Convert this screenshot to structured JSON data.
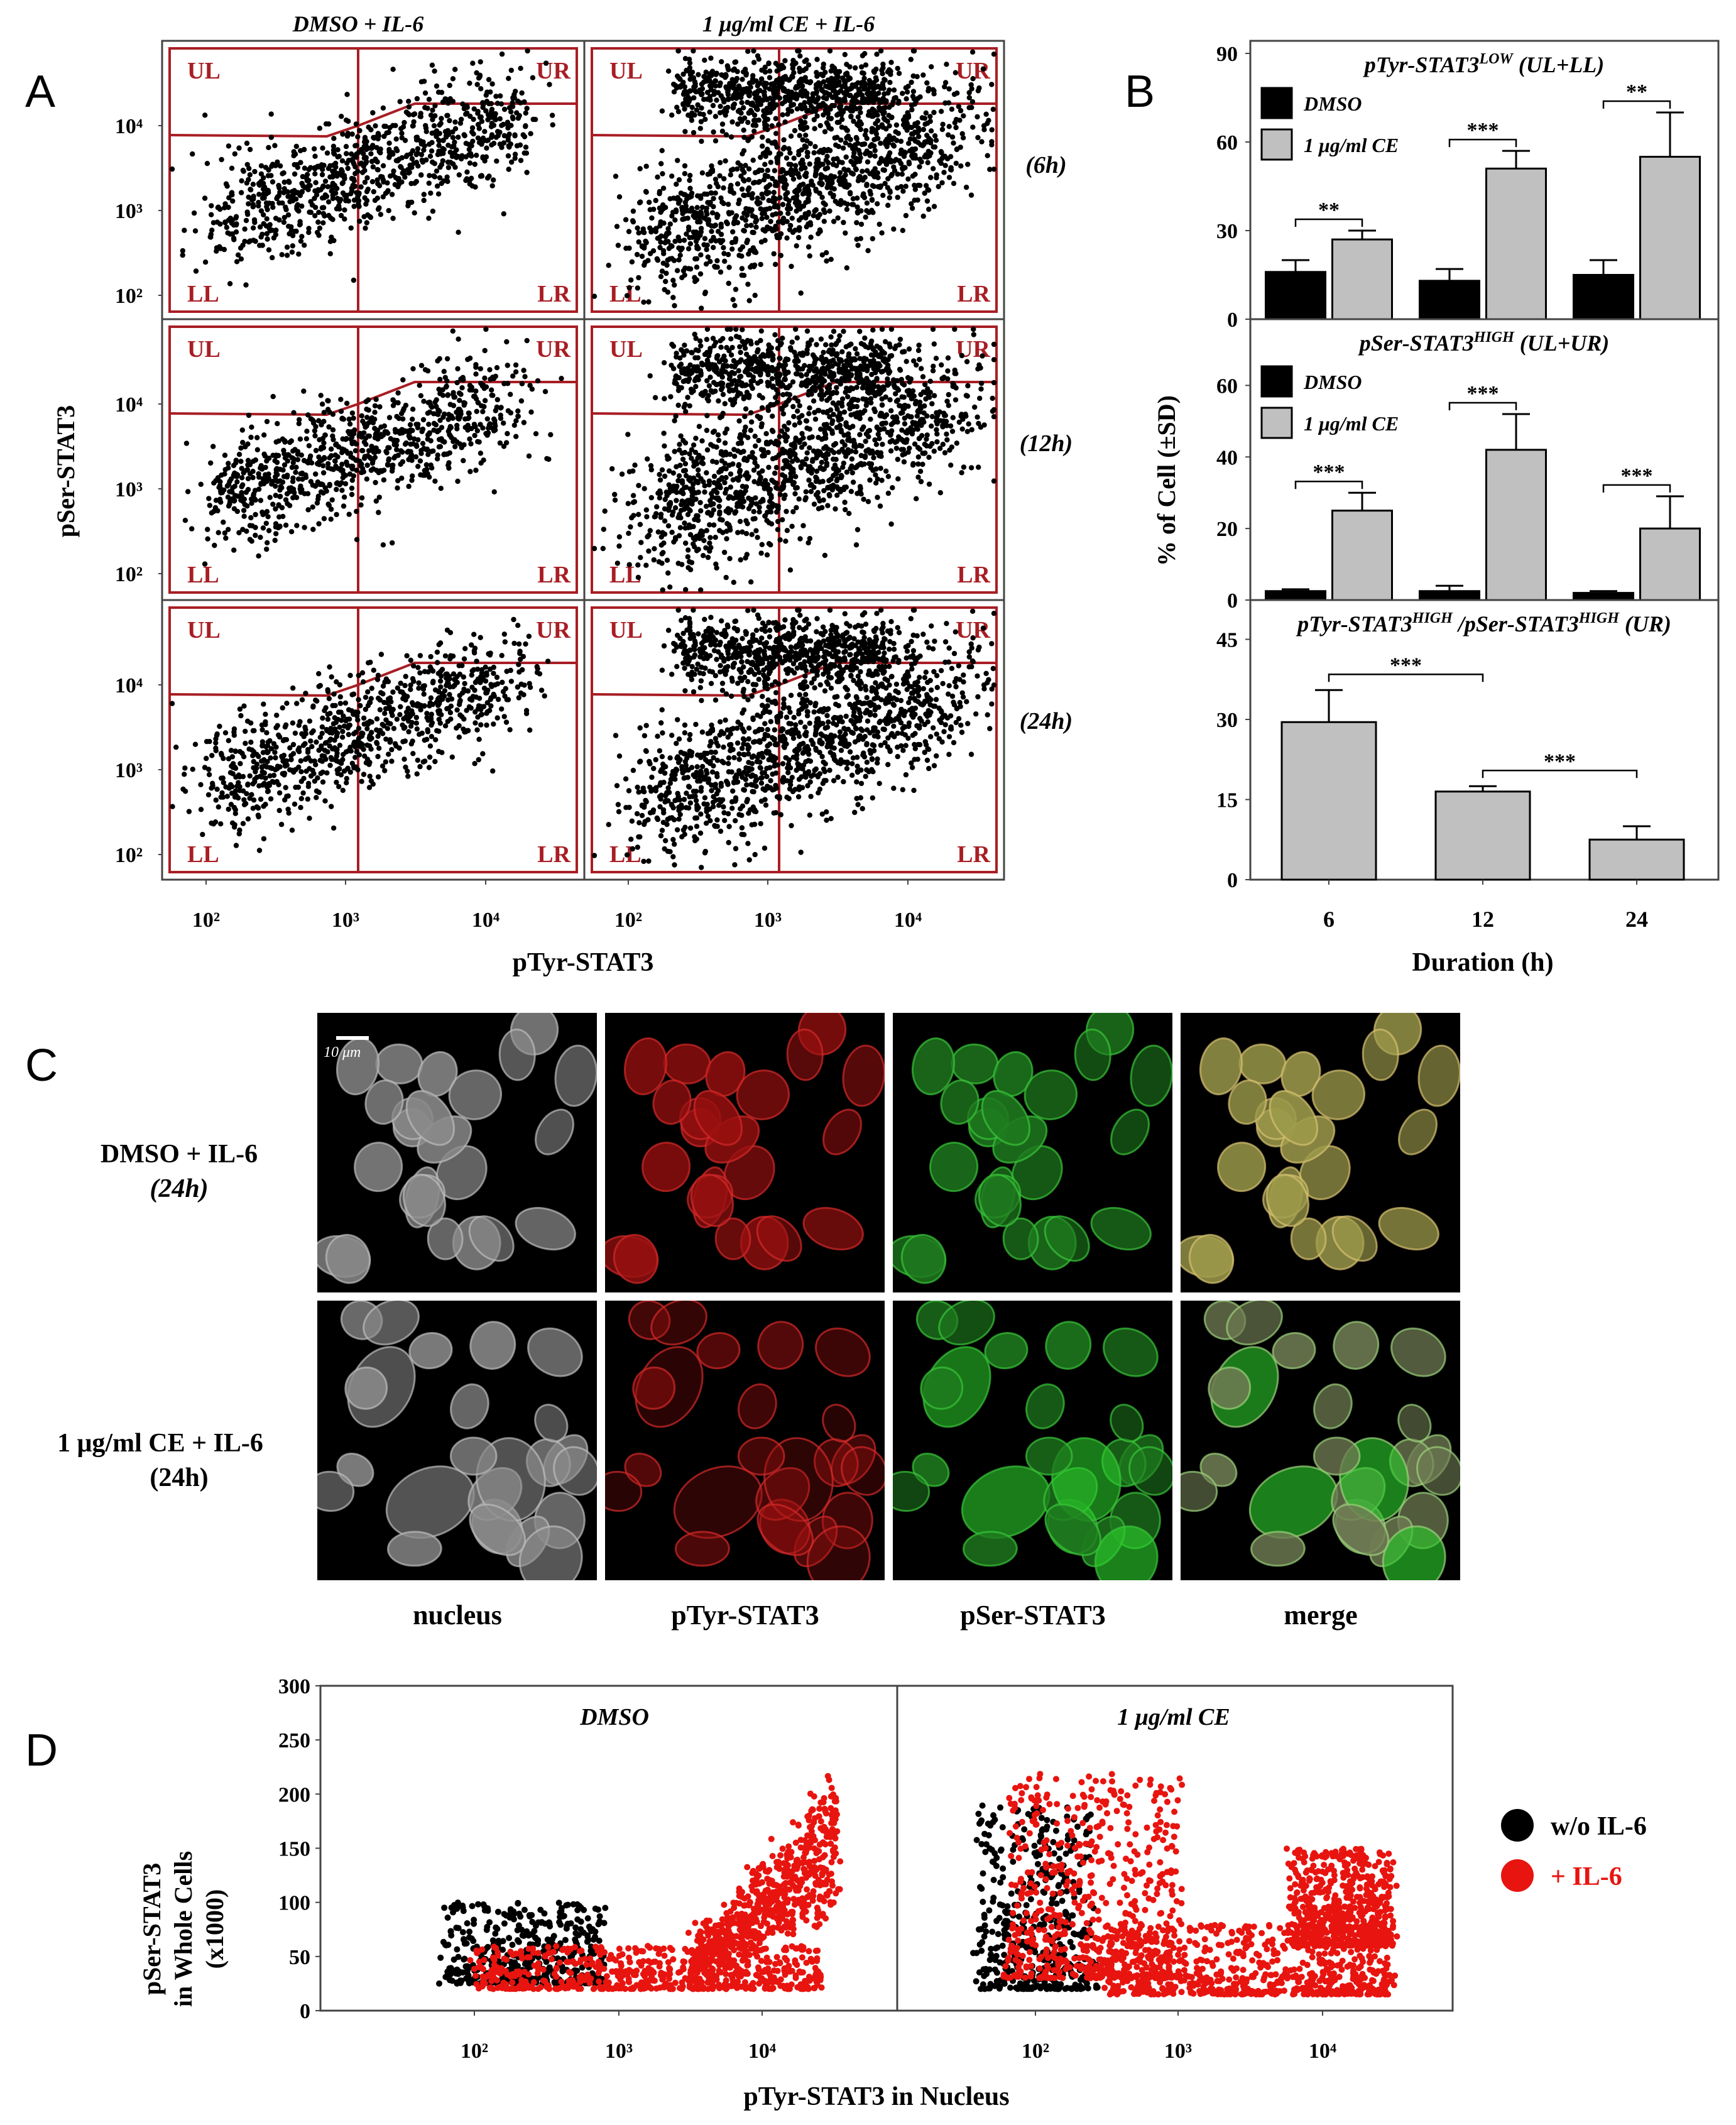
{
  "panel_letters": [
    "A",
    "B",
    "C",
    "D"
  ],
  "panel_a": {
    "col_titles": [
      "DMSO + IL-6",
      "1 μg/ml CE + IL-6"
    ],
    "row_times": [
      "(6h)",
      "(12h)",
      "(24h)"
    ],
    "quadrant_labels": [
      "UL",
      "UR",
      "LL",
      "LR"
    ],
    "y_title": "pSer-STAT3",
    "x_title": "pTyr-STAT3",
    "y_ticks": [
      "10²",
      "10³",
      "10⁴"
    ],
    "x_ticks": [
      "10²",
      "10³",
      "10⁴"
    ],
    "colors": {
      "frame": "#a81e24",
      "dots": "#000000"
    }
  },
  "panel_b": {
    "y_title": "% of Cell (±SD)",
    "x_title": "Duration (h)",
    "x_ticks": [
      "6",
      "12",
      "24"
    ],
    "legend": [
      "DMSO",
      "1 μg/ml CE"
    ],
    "colors": {
      "dmso": "#000000",
      "ce": "#c0c0c0"
    }
  },
  "panel_c": {
    "rows": [
      {
        "label": "DMSO + IL-6",
        "sub": "(24h)"
      },
      {
        "label": "1 μg/ml CE + IL-6",
        "sub": "(24h)"
      }
    ],
    "columns": [
      "nucleus",
      "pTyr-STAT3",
      "pSer-STAT3",
      "merge"
    ],
    "scale_bar": "10 μm"
  },
  "panel_d": {
    "panel_titles": [
      "DMSO",
      "1 μg/ml CE"
    ],
    "y_title_lines": [
      "pSer-STAT3",
      "in Whole Cells",
      "(x1000)"
    ],
    "x_title": "pTyr-STAT3 in Nucleus",
    "y_ticks": [
      "0",
      "50",
      "100",
      "150",
      "200",
      "250",
      "300"
    ],
    "x_ticks": [
      "10²",
      "10³",
      "10⁴"
    ],
    "legend": [
      {
        "label": "w/o IL-6",
        "color": "#000000"
      },
      {
        "label": "+ IL-6",
        "color": "#e8140f"
      }
    ]
  },
  "chart_data": [
    {
      "type": "bar",
      "title_parts": {
        "main": "pTyr-STAT3",
        "sup": "LOW",
        "suffix": " (UL+LL)"
      },
      "categories": [
        "6",
        "12",
        "24"
      ],
      "ylim": [
        0,
        90
      ],
      "y_ticks": [
        0,
        30,
        60,
        90
      ],
      "series": [
        {
          "name": "DMSO",
          "values": [
            16,
            13,
            15
          ],
          "errors": [
            4,
            4,
            5
          ]
        },
        {
          "name": "1 μg/ml CE",
          "values": [
            27,
            51,
            55
          ],
          "errors": [
            3,
            6,
            15
          ]
        }
      ],
      "significance": [
        {
          "category": "6",
          "label": "**"
        },
        {
          "category": "12",
          "label": "***"
        },
        {
          "category": "24",
          "label": "**"
        }
      ]
    },
    {
      "type": "bar",
      "title_parts": {
        "main": "pSer-STAT3",
        "sup": "HIGH",
        "suffix": " (UL+UR)"
      },
      "categories": [
        "6",
        "12",
        "24"
      ],
      "ylim": [
        0,
        75
      ],
      "y_ticks": [
        0,
        20,
        40,
        60
      ],
      "series": [
        {
          "name": "DMSO",
          "values": [
            2.5,
            2.5,
            2
          ],
          "errors": [
            0.5,
            1.5,
            0.5
          ]
        },
        {
          "name": "1 μg/ml CE",
          "values": [
            25,
            42,
            20
          ],
          "errors": [
            5,
            10,
            9
          ]
        }
      ],
      "significance": [
        {
          "category": "6",
          "label": "***"
        },
        {
          "category": "12",
          "label": "***"
        },
        {
          "category": "24",
          "label": "***"
        }
      ]
    },
    {
      "type": "bar",
      "title_parts": {
        "main": "pTyr-STAT3",
        "sup": "HIGH",
        "mid": " /pSer-STAT3",
        "sup2": "HIGH",
        "suffix": " (UR)"
      },
      "categories": [
        "6",
        "12",
        "24"
      ],
      "ylim": [
        0,
        50
      ],
      "y_ticks": [
        0,
        15,
        30,
        45
      ],
      "series": [
        {
          "name": "1 μg/ml CE",
          "values": [
            29.5,
            16.5,
            7.5
          ],
          "errors": [
            6,
            1,
            2.5
          ]
        }
      ],
      "significance": [
        {
          "from": "6",
          "to": "12",
          "label": "***"
        },
        {
          "from": "12",
          "to": "24",
          "label": "***"
        }
      ]
    },
    {
      "type": "scatter",
      "title": "DMSO",
      "xlabel": "pTyr-STAT3 in Nucleus",
      "ylabel": "pSer-STAT3 in Whole Cells (x1000)",
      "x_scale": "log",
      "ylim": [
        0,
        300
      ],
      "series": [
        {
          "name": "w/o IL-6",
          "color": "#000000",
          "clusters": [
            {
              "x_log": [
                1.8,
                2.9
              ],
              "y": [
                25,
                100
              ]
            }
          ]
        },
        {
          "name": "+ IL-6",
          "color": "#e8140f",
          "clusters": [
            {
              "x_log": [
                2.0,
                4.4
              ],
              "y": [
                20,
                60
              ]
            },
            {
              "x_log": [
                3.5,
                4.5
              ],
              "y": [
                50,
                210
              ]
            }
          ]
        }
      ]
    },
    {
      "type": "scatter",
      "title": "1 μg/ml CE",
      "xlabel": "pTyr-STAT3 in Nucleus",
      "ylabel": "pSer-STAT3 in Whole Cells (x1000)",
      "x_scale": "log",
      "ylim": [
        0,
        300
      ],
      "series": [
        {
          "name": "w/o IL-6",
          "color": "#000000",
          "clusters": [
            {
              "x_log": [
                1.6,
                2.4
              ],
              "y": [
                20,
                190
              ]
            }
          ]
        },
        {
          "name": "+ IL-6",
          "color": "#e8140f",
          "clusters": [
            {
              "x_log": [
                1.8,
                3.0
              ],
              "y": [
                30,
                220
              ]
            },
            {
              "x_log": [
                2.5,
                4.5
              ],
              "y": [
                15,
                80
              ]
            },
            {
              "x_log": [
                3.8,
                4.5
              ],
              "y": [
                60,
                150
              ]
            }
          ]
        }
      ]
    }
  ]
}
